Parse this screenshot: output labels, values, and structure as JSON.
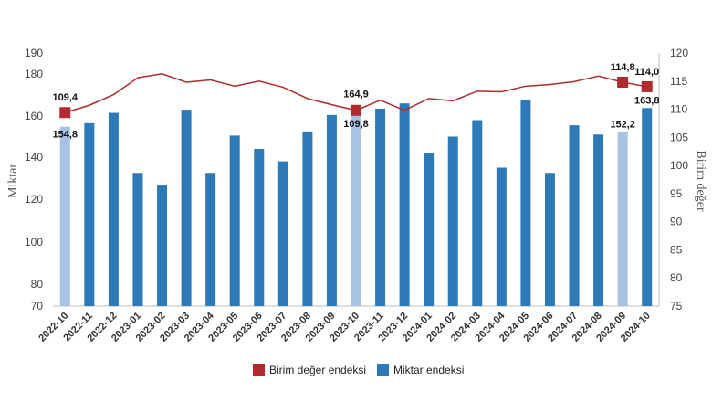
{
  "chart_data": {
    "type": "bar",
    "categories": [
      "2022-10",
      "2022-11",
      "2022-12",
      "2023-01",
      "2023-02",
      "2023-03",
      "2023-04",
      "2023-05",
      "2023-06",
      "2023-07",
      "2023-08",
      "2023-09",
      "2023-10",
      "2023-11",
      "2023-12",
      "2024-01",
      "2024-02",
      "2024-03",
      "2024-04",
      "2024-05",
      "2024-06",
      "2024-07",
      "2024-08",
      "2024-09",
      "2024-10"
    ],
    "ylabel_left": "Miktar",
    "ylabel_right": "Birim değer",
    "ylim_left": [
      70,
      190
    ],
    "yticks_left": [
      70,
      80,
      100,
      120,
      140,
      160,
      180,
      190
    ],
    "ylim_right": [
      75,
      120
    ],
    "yticks_right": [
      75,
      80,
      85,
      90,
      95,
      100,
      105,
      110,
      115,
      120
    ],
    "legend_position": "bottom",
    "grid": false,
    "series": [
      {
        "name": "Miktar endeksi",
        "kind": "bar",
        "axis": "left",
        "color": "#2e7ab8",
        "highlight_color": "#a8c2e6",
        "highlight_indices": [
          0,
          12,
          23
        ],
        "values": [
          154.8,
          156.5,
          161.5,
          132.5,
          126.5,
          163.0,
          132.5,
          150.5,
          144.0,
          138.0,
          152.5,
          160.5,
          164.9,
          163.5,
          166.0,
          142.0,
          150.0,
          158.0,
          135.0,
          167.5,
          132.5,
          155.5,
          151.0,
          152.2,
          163.8
        ]
      },
      {
        "name": "Birim değer endeksi",
        "kind": "line",
        "axis": "right",
        "color": "#b02a2e",
        "marker_indices": [
          0,
          12,
          23,
          24
        ],
        "values": [
          109.4,
          110.7,
          112.6,
          115.6,
          116.3,
          114.8,
          115.2,
          114.1,
          115.0,
          113.9,
          111.9,
          110.8,
          109.8,
          111.6,
          109.8,
          111.9,
          111.5,
          113.2,
          113.1,
          114.1,
          114.4,
          114.9,
          115.9,
          114.8,
          114.0
        ]
      }
    ],
    "data_labels": [
      {
        "series": "Birim değer endeksi",
        "index": 0,
        "text": "109,4"
      },
      {
        "series": "Miktar endeksi",
        "index": 0,
        "text": "154,8"
      },
      {
        "series": "Miktar endeksi",
        "index": 12,
        "text": "164,9"
      },
      {
        "series": "Birim değer endeksi",
        "index": 12,
        "text": "109,8"
      },
      {
        "series": "Birim değer endeksi",
        "index": 23,
        "text": "114,8"
      },
      {
        "series": "Miktar endeksi",
        "index": 23,
        "text": "152,2"
      },
      {
        "series": "Birim değer endeksi",
        "index": 24,
        "text": "114,0"
      },
      {
        "series": "Miktar endeksi",
        "index": 24,
        "text": "163,8"
      }
    ]
  },
  "legend": {
    "items": [
      {
        "label": "Birim değer endeksi",
        "color": "#b02a2e"
      },
      {
        "label": "Miktar endeksi",
        "color": "#2e7ab8"
      }
    ]
  }
}
